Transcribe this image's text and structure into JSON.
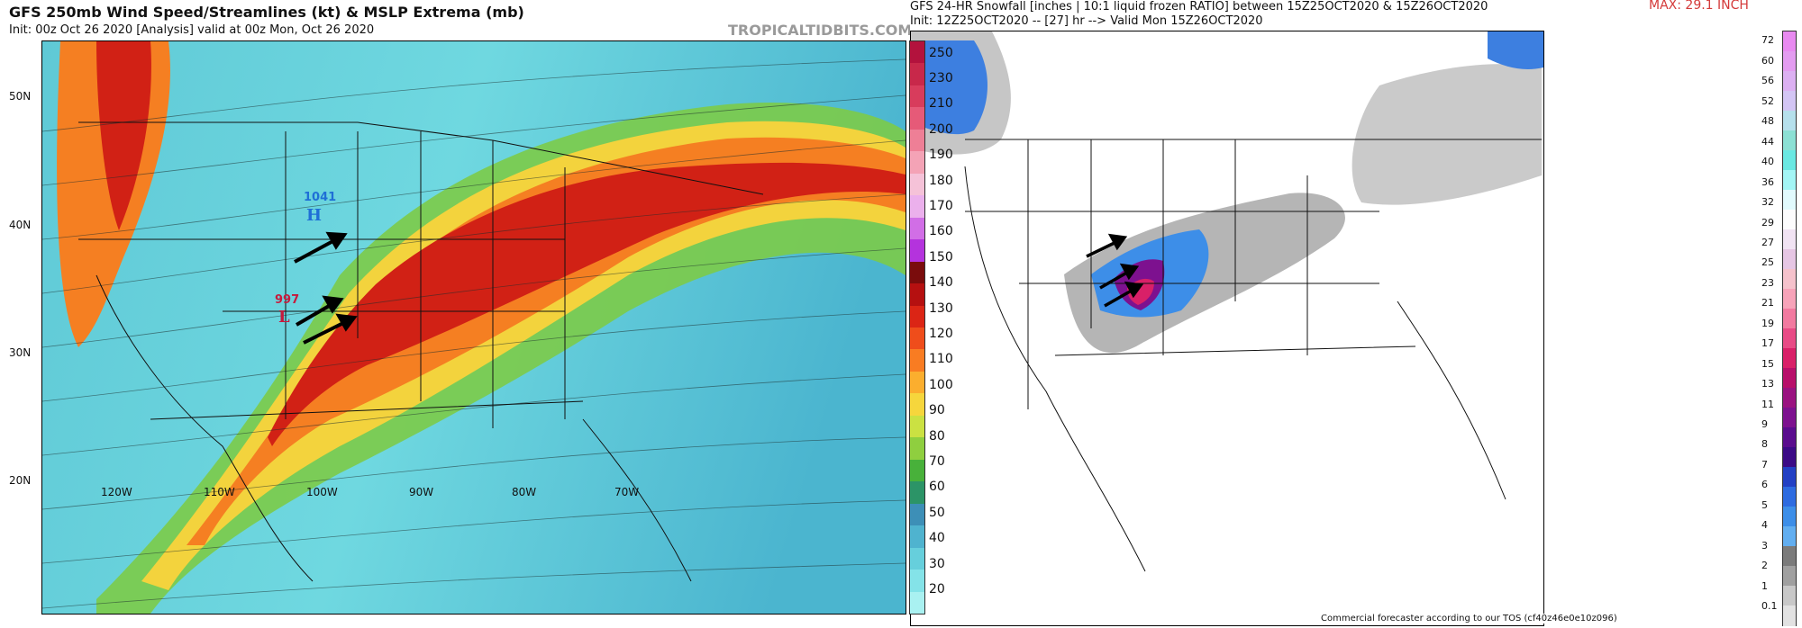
{
  "left": {
    "title": "GFS 250mb Wind Speed/Streamlines (kt) & MSLP Extrema (mb)",
    "subtitle": "Init: 00z Oct 26 2020  [Analysis]  valid at 00z Mon, Oct 26 2020",
    "watermark": "TROPICALTIDBITS.COM",
    "lat_labels": [
      "50N",
      "40N",
      "30N",
      "20N"
    ],
    "lon_labels": [
      "120W",
      "110W",
      "100W",
      "90W",
      "80W",
      "70W"
    ],
    "high": {
      "symbol": "H",
      "value": "1041"
    },
    "low": {
      "symbol": "L",
      "value": "997"
    },
    "colorbar": {
      "labels": [
        "250",
        "230",
        "210",
        "200",
        "190",
        "180",
        "170",
        "160",
        "150",
        "140",
        "130",
        "120",
        "110",
        "100",
        "90",
        "80",
        "70",
        "60",
        "50",
        "40",
        "30",
        "20"
      ],
      "colors": [
        "#b3123d",
        "#c8284a",
        "#d83c5c",
        "#e65a78",
        "#ee7f96",
        "#f4a3b6",
        "#f5c2d8",
        "#ebb0ec",
        "#d16ee6",
        "#b433dd",
        "#7a0c0c",
        "#b51010",
        "#db2515",
        "#ef4d1b",
        "#f97c22",
        "#fbae2e",
        "#f6d63c",
        "#cbe142",
        "#8fcf3f",
        "#48b13a",
        "#2c9467",
        "#3d8fb7",
        "#4fb3cf",
        "#66cfdc",
        "#84e3e8",
        "#a9f1f1"
      ]
    }
  },
  "right": {
    "title": "GFS 24-HR Snowfall [inches | 10:1 liquid frozen RATIO] between 15Z25OCT2020 & 15Z26OCT2020",
    "subtitle": "Init: 12Z25OCT2020 -- [27] hr --> Valid Mon 15Z26OCT2020",
    "max_label": "MAX: 29.1 INCH",
    "credit": "Commercial forecaster according to our TOS (cf40z46e0e10z096)",
    "colorbar": {
      "labels": [
        "72",
        "60",
        "56",
        "52",
        "48",
        "44",
        "40",
        "36",
        "32",
        "29",
        "27",
        "25",
        "23",
        "21",
        "19",
        "17",
        "15",
        "13",
        "11",
        "9",
        "8",
        "7",
        "6",
        "5",
        "4",
        "3",
        "2",
        "1",
        "0.1"
      ],
      "colors": [
        "#e88af0",
        "#e39cf0",
        "#dcb0f2",
        "#d3c5f4",
        "#b6e0ec",
        "#8ce0d4",
        "#6ae8e2",
        "#a3f5f5",
        "#e1fafd",
        "#fcfcfd",
        "#f1e3f3",
        "#e6c6e4",
        "#f5c2cc",
        "#f7a3b9",
        "#f27aa0",
        "#e84b86",
        "#d92068",
        "#b80f6a",
        "#9a1280",
        "#7d118f",
        "#5a0c8e",
        "#3b0a86",
        "#2340c4",
        "#2e6be0",
        "#3d8ee8",
        "#62aef0",
        "#7b7b7b",
        "#a0a0a0",
        "#c8c8c8",
        "#e2e2e2"
      ]
    }
  }
}
